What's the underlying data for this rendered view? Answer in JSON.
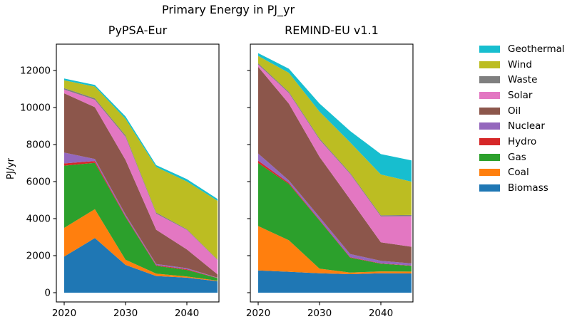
{
  "figure": {
    "title": "Primary Energy in PJ_yr",
    "ylabel": "PJ/yr"
  },
  "legend": {
    "position": "right-outside",
    "entries": [
      {
        "label": "Geothermal",
        "color": "#17becf"
      },
      {
        "label": "Wind",
        "color": "#bcbd22"
      },
      {
        "label": "Waste",
        "color": "#7f7f7f"
      },
      {
        "label": "Solar",
        "color": "#e377c2"
      },
      {
        "label": "Oil",
        "color": "#8c564b"
      },
      {
        "label": "Nuclear",
        "color": "#9467bd"
      },
      {
        "label": "Hydro",
        "color": "#d62728"
      },
      {
        "label": "Gas",
        "color": "#2ca02c"
      },
      {
        "label": "Coal",
        "color": "#ff7f0e"
      },
      {
        "label": "Biomass",
        "color": "#1f77b4"
      }
    ]
  },
  "chart_data": [
    {
      "type": "area",
      "title": "PyPSA-Eur",
      "x": [
        2020,
        2025,
        2030,
        2035,
        2040,
        2045
      ],
      "xtick_labels": [
        "2020",
        "2030",
        "2040"
      ],
      "xticks": [
        2020,
        2030,
        2040
      ],
      "ytick_labels": [
        "0",
        "2000",
        "4000",
        "6000",
        "8000",
        "10000",
        "12000"
      ],
      "yticks": [
        0,
        2000,
        4000,
        6000,
        8000,
        10000,
        12000
      ],
      "ylim": [
        0,
        13400
      ],
      "grid": false,
      "stacking": "bottom-to-top",
      "series": [
        {
          "name": "Biomass",
          "color": "#1f77b4",
          "values": [
            1950,
            2950,
            1500,
            900,
            810,
            620
          ]
        },
        {
          "name": "Coal",
          "color": "#ff7f0e",
          "values": [
            1550,
            1560,
            280,
            130,
            65,
            30
          ]
        },
        {
          "name": "Gas",
          "color": "#2ca02c",
          "values": [
            3360,
            2500,
            2300,
            420,
            350,
            140
          ]
        },
        {
          "name": "Hydro",
          "color": "#d62728",
          "values": [
            120,
            100,
            50,
            40,
            40,
            10
          ]
        },
        {
          "name": "Nuclear",
          "color": "#9467bd",
          "values": [
            590,
            110,
            90,
            60,
            60,
            10
          ]
        },
        {
          "name": "Oil",
          "color": "#8c564b",
          "values": [
            3200,
            2800,
            2950,
            1850,
            1010,
            180
          ]
        },
        {
          "name": "Solar",
          "color": "#e377c2",
          "values": [
            200,
            400,
            1250,
            870,
            1060,
            770
          ]
        },
        {
          "name": "Waste",
          "color": "#7f7f7f",
          "values": [
            80,
            80,
            80,
            60,
            40,
            30
          ]
        },
        {
          "name": "Wind",
          "color": "#bcbd22",
          "values": [
            420,
            630,
            890,
            2460,
            2570,
            3170
          ]
        },
        {
          "name": "Geothermal",
          "color": "#17becf",
          "values": [
            100,
            90,
            130,
            100,
            130,
            100
          ]
        }
      ]
    },
    {
      "type": "area",
      "title": "REMIND-EU v1.1",
      "x": [
        2020,
        2025,
        2030,
        2035,
        2040,
        2045
      ],
      "xtick_labels": [
        "2020",
        "2030",
        "2040"
      ],
      "xticks": [
        2020,
        2030,
        2040
      ],
      "ytick_labels": [],
      "yticks": [
        0,
        2000,
        4000,
        6000,
        8000,
        10000,
        12000
      ],
      "ylim": [
        0,
        13400
      ],
      "grid": false,
      "stacking": "bottom-to-top",
      "series": [
        {
          "name": "Biomass",
          "color": "#1f77b4",
          "values": [
            1200,
            1130,
            1050,
            1000,
            1050,
            1040
          ]
        },
        {
          "name": "Coal",
          "color": "#ff7f0e",
          "values": [
            2400,
            1700,
            250,
            90,
            100,
            100
          ]
        },
        {
          "name": "Gas",
          "color": "#2ca02c",
          "values": [
            3400,
            3040,
            2600,
            800,
            420,
            310
          ]
        },
        {
          "name": "Hydro",
          "color": "#d62728",
          "values": [
            130,
            60,
            30,
            30,
            20,
            15
          ]
        },
        {
          "name": "Nuclear",
          "color": "#9467bd",
          "values": [
            385,
            130,
            160,
            170,
            130,
            115
          ]
        },
        {
          "name": "Oil",
          "color": "#8c564b",
          "values": [
            4680,
            4150,
            3250,
            2950,
            1000,
            900
          ]
        },
        {
          "name": "Solar",
          "color": "#e377c2",
          "values": [
            130,
            575,
            925,
            1370,
            1400,
            1650
          ]
        },
        {
          "name": "Waste",
          "color": "#7f7f7f",
          "values": [
            65,
            65,
            65,
            65,
            65,
            65
          ]
        },
        {
          "name": "Wind",
          "color": "#bcbd22",
          "values": [
            400,
            1025,
            1450,
            1640,
            2200,
            1800
          ]
        },
        {
          "name": "Geothermal",
          "color": "#17becf",
          "values": [
            150,
            220,
            435,
            615,
            1100,
            1150
          ]
        }
      ]
    }
  ]
}
